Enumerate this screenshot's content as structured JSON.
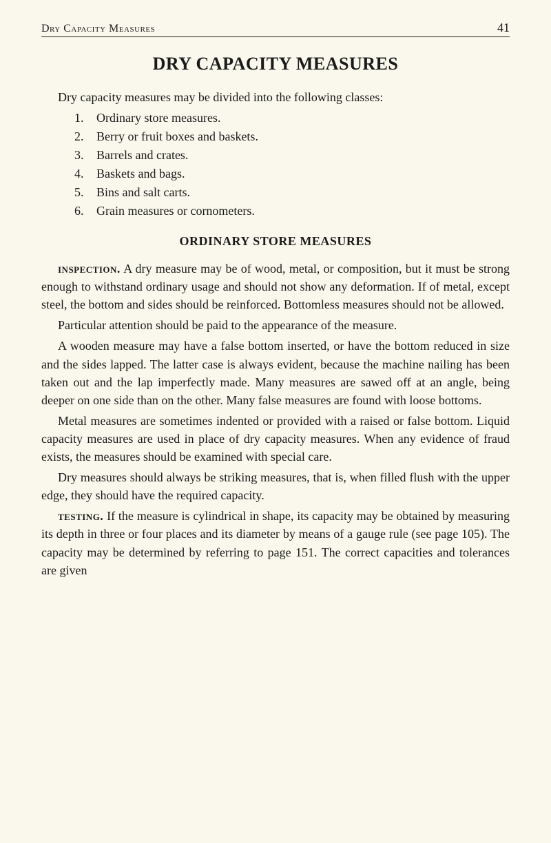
{
  "header": {
    "running_head": "Dry Capacity Measures",
    "page_number": "41"
  },
  "main_title": "DRY CAPACITY MEASURES",
  "intro": "Dry capacity measures may be divided into the following classes:",
  "list_items": [
    {
      "num": "1.",
      "text": "Ordinary store measures."
    },
    {
      "num": "2.",
      "text": "Berry or fruit boxes and baskets."
    },
    {
      "num": "3.",
      "text": "Barrels and crates."
    },
    {
      "num": "4.",
      "text": "Baskets and bags."
    },
    {
      "num": "5.",
      "text": "Bins and salt carts."
    },
    {
      "num": "6.",
      "text": "Grain measures or cornometers."
    }
  ],
  "sub_title": "ORDINARY STORE MEASURES",
  "paragraphs": {
    "p1_keyword": "inspection.",
    "p1_rest": " A dry measure may be of wood, metal, or composition, but it must be strong enough to withstand ordinary usage and should not show any deformation. If of metal, except steel, the bottom and sides should be reinforced. Bottomless measures should not be allowed.",
    "p2": "Particular attention should be paid to the appearance of the measure.",
    "p3": "A wooden measure may have a false bottom inserted, or have the bottom reduced in size and the sides lapped. The latter case is always evident, because the machine nailing has been taken out and the lap imperfectly made. Many measures are sawed off at an angle, being deeper on one side than on the other. Many false measures are found with loose bottoms.",
    "p4": "Metal measures are sometimes indented or provided with a raised or false bottom. Liquid capacity measures are used in place of dry capacity measures. When any evidence of fraud exists, the measures should be examined with special care.",
    "p5": "Dry measures should always be striking measures, that is, when filled flush with the upper edge, they should have the required capacity.",
    "p6_keyword": "testing.",
    "p6_rest": " If the measure is cylindrical in shape, its capacity may be obtained by measuring its depth in three or four places and its diameter by means of a gauge rule (see page 105). The capacity may be determined by referring to page 151. The correct capacities and tolerances are given"
  },
  "colors": {
    "background": "#faf8ec",
    "text": "#1a1a1a"
  },
  "typography": {
    "body_fontsize": 18,
    "title_fontsize": 26,
    "subtitle_fontsize": 18,
    "font_family": "Georgia, Times New Roman, serif"
  }
}
